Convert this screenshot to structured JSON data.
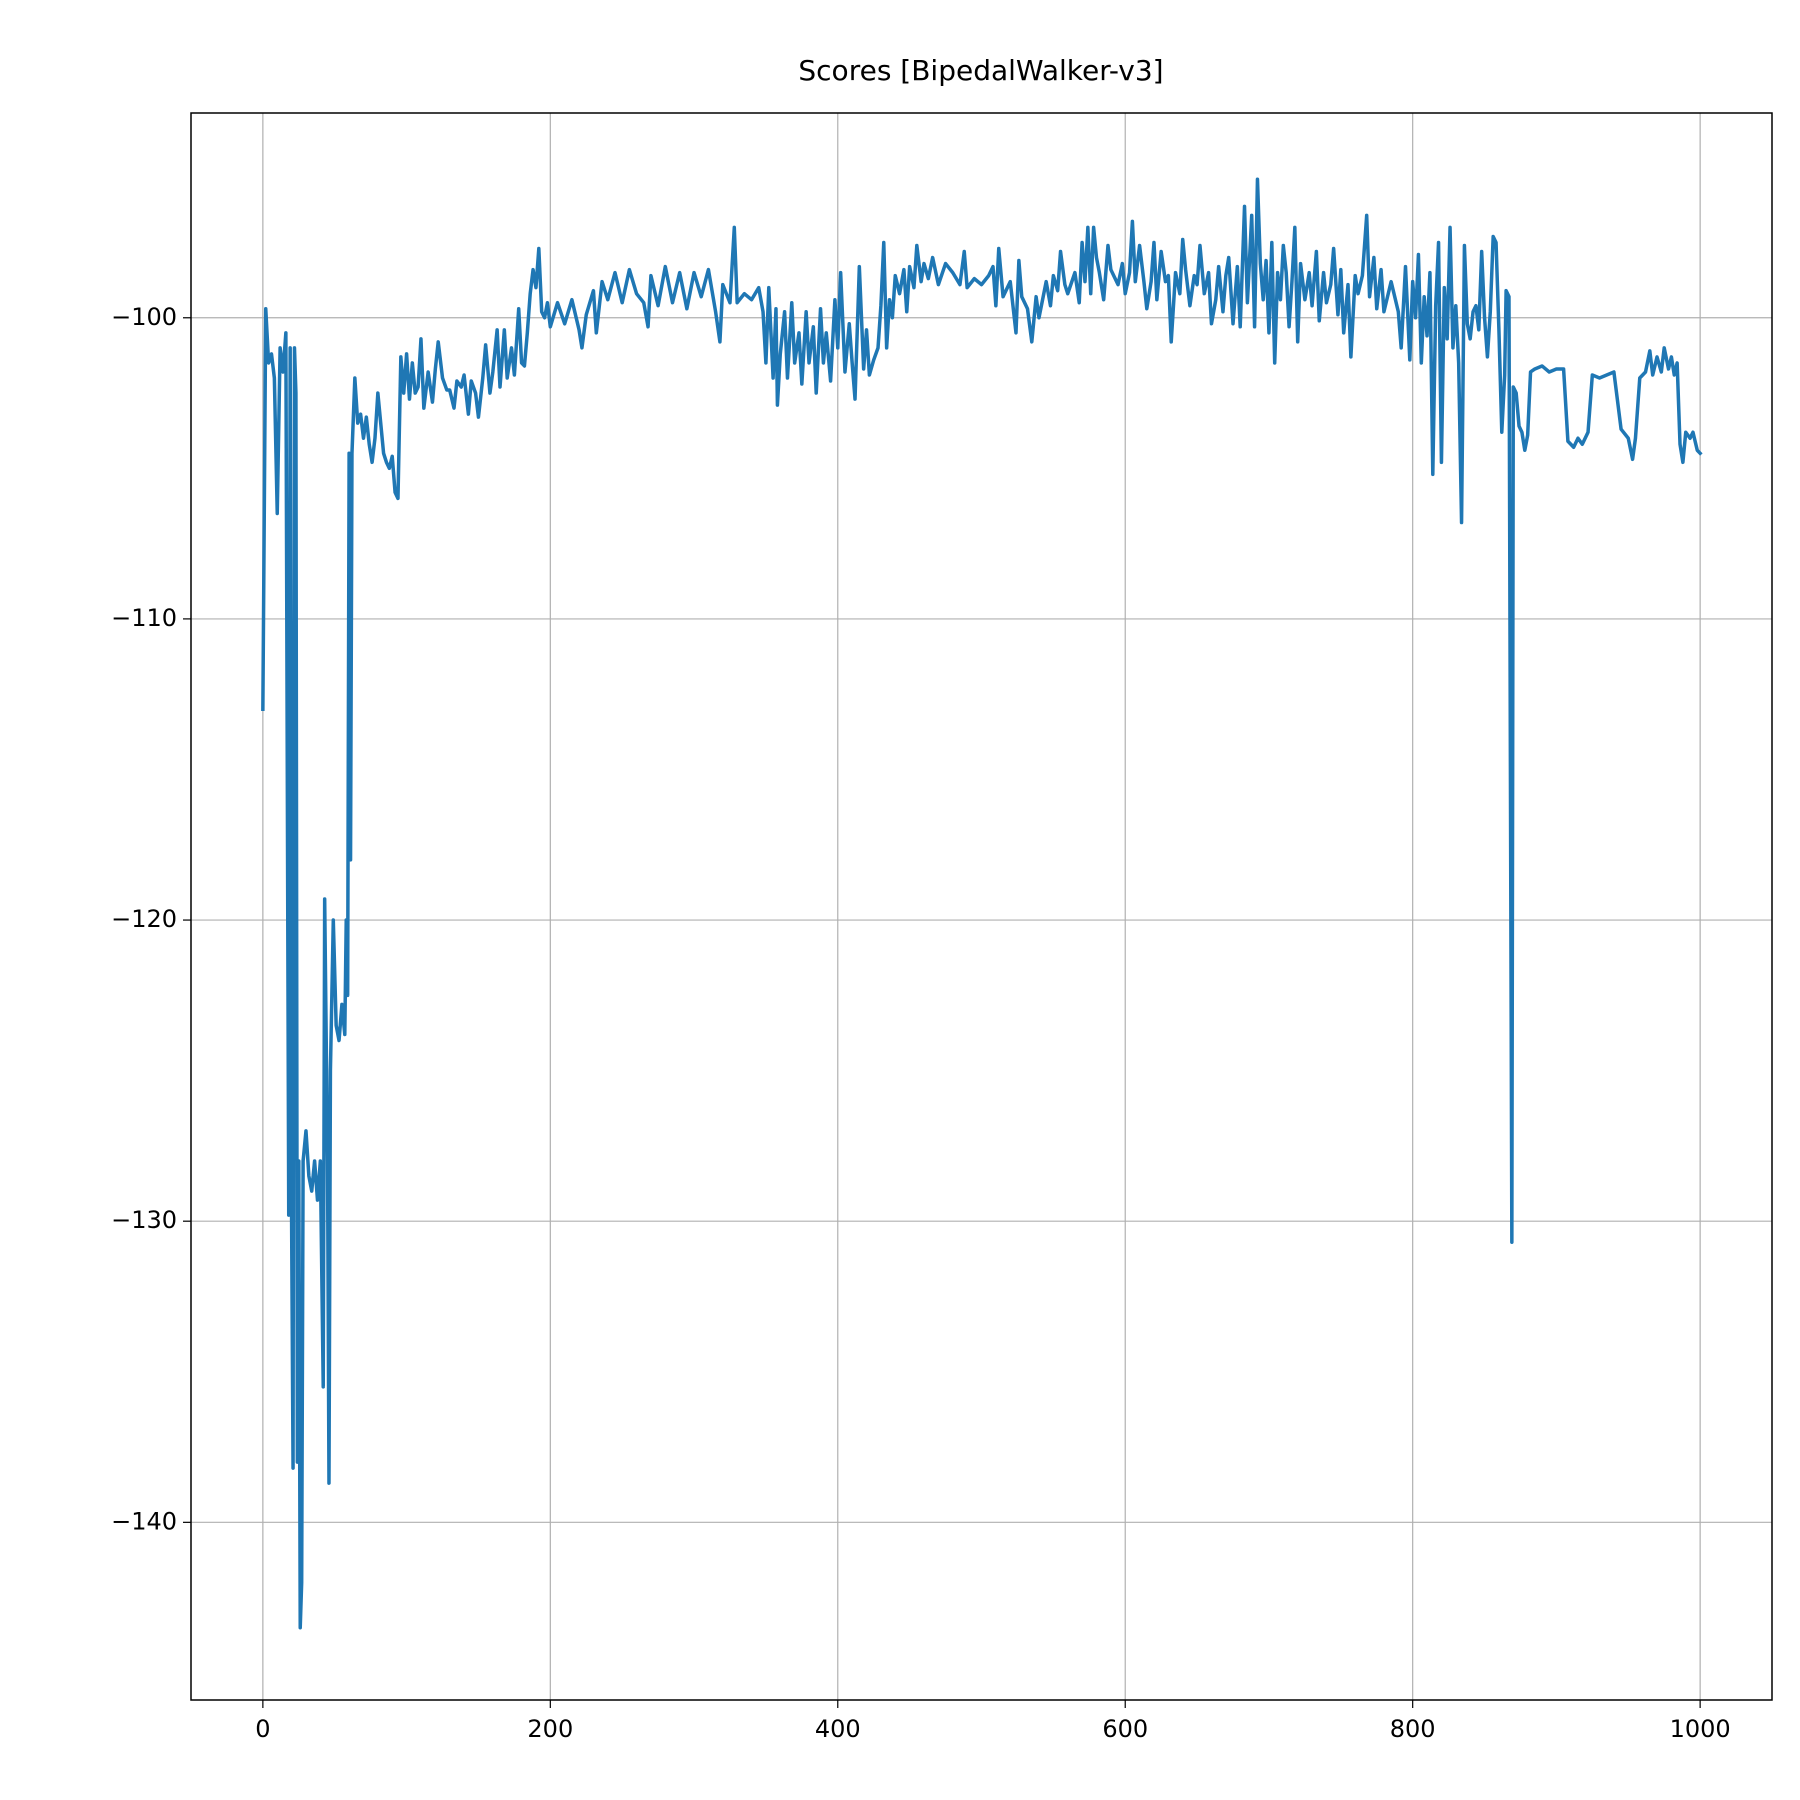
{
  "chart_data": {
    "type": "line",
    "title": "Scores [BipedalWalker-v3]",
    "color": "#1f77b4",
    "grid": true,
    "xlim": [
      -50,
      1050
    ],
    "ylim": [
      -145.9,
      -93.2
    ],
    "xticks": [
      0,
      200,
      400,
      600,
      800,
      1000
    ],
    "yticks": [
      {
        "value": -140,
        "label": "−140"
      },
      {
        "value": -130,
        "label": "−130"
      },
      {
        "value": -120,
        "label": "−120"
      },
      {
        "value": -110,
        "label": "−110"
      },
      {
        "value": -100,
        "label": "−100"
      }
    ],
    "x": [
      0,
      2,
      4,
      6,
      8,
      10,
      12,
      14,
      16,
      18,
      19,
      20,
      21,
      22,
      23,
      24,
      25,
      26,
      27,
      28,
      30,
      32,
      34,
      36,
      38,
      40,
      42,
      43,
      45,
      46,
      47,
      49,
      51,
      53,
      55,
      57,
      58,
      59,
      60,
      61,
      62,
      64,
      66,
      68,
      70,
      72,
      74,
      76,
      78,
      80,
      82,
      84,
      86,
      88,
      90,
      92,
      94,
      96,
      98,
      100,
      102,
      104,
      106,
      108,
      110,
      112,
      115,
      118,
      120,
      122,
      125,
      128,
      130,
      133,
      135,
      138,
      140,
      143,
      145,
      148,
      150,
      153,
      155,
      158,
      160,
      163,
      165,
      168,
      170,
      173,
      175,
      178,
      180,
      182,
      184,
      186,
      188,
      190,
      192,
      194,
      196,
      198,
      200,
      205,
      210,
      215,
      220,
      222,
      225,
      230,
      232,
      236,
      240,
      245,
      250,
      255,
      260,
      265,
      268,
      270,
      275,
      280,
      285,
      290,
      295,
      300,
      305,
      310,
      315,
      318,
      320,
      325,
      328,
      330,
      335,
      340,
      345,
      348,
      350,
      352,
      355,
      357,
      358,
      360,
      363,
      365,
      368,
      370,
      373,
      375,
      378,
      380,
      383,
      385,
      388,
      390,
      392,
      395,
      398,
      400,
      402,
      405,
      408,
      410,
      412,
      415,
      418,
      420,
      422,
      425,
      428,
      430,
      432,
      434,
      436,
      438,
      440,
      443,
      446,
      448,
      450,
      453,
      455,
      458,
      460,
      463,
      466,
      470,
      475,
      480,
      485,
      488,
      490,
      495,
      500,
      505,
      508,
      510,
      512,
      515,
      520,
      524,
      526,
      528,
      532,
      535,
      538,
      540,
      545,
      548,
      550,
      553,
      555,
      558,
      560,
      565,
      568,
      570,
      572,
      574,
      576,
      578,
      580,
      582,
      585,
      588,
      590,
      595,
      598,
      600,
      603,
      605,
      607,
      610,
      613,
      615,
      618,
      620,
      622,
      625,
      628,
      630,
      632,
      635,
      638,
      640,
      642,
      645,
      648,
      650,
      652,
      655,
      658,
      660,
      663,
      665,
      668,
      670,
      672,
      675,
      678,
      680,
      683,
      685,
      688,
      690,
      692,
      694,
      696,
      698,
      700,
      702,
      704,
      706,
      708,
      710,
      712,
      714,
      716,
      718,
      720,
      722,
      725,
      728,
      730,
      733,
      735,
      738,
      740,
      743,
      745,
      748,
      750,
      752,
      755,
      757,
      760,
      762,
      765,
      768,
      770,
      773,
      775,
      778,
      780,
      785,
      790,
      792,
      795,
      798,
      800,
      802,
      804,
      806,
      808,
      810,
      812,
      814,
      816,
      818,
      820,
      822,
      824,
      826,
      828,
      830,
      832,
      834,
      836,
      838,
      840,
      842,
      844,
      846,
      848,
      850,
      852,
      854,
      856,
      858,
      860,
      862,
      864,
      865,
      867,
      869,
      870,
      872,
      874,
      876,
      878,
      880,
      882,
      885,
      890,
      895,
      900,
      905,
      908,
      912,
      915,
      918,
      922,
      925,
      930,
      935,
      940,
      945,
      950,
      953,
      955,
      958,
      962,
      965,
      967,
      970,
      973,
      975,
      978,
      980,
      982,
      984,
      986,
      988,
      990,
      993,
      995,
      998,
      1000
    ],
    "values": [
      -113,
      -99.7,
      -101.5,
      -101.2,
      -102,
      -106.5,
      -101,
      -101.8,
      -100.5,
      -129.8,
      -101,
      -130,
      -138.2,
      -101,
      -102.5,
      -138,
      -128,
      -143.5,
      -142,
      -128,
      -127,
      -128.5,
      -129,
      -128,
      -129.3,
      -128,
      -135.5,
      -119.3,
      -128,
      -138.7,
      -125,
      -120,
      -123.5,
      -124,
      -122.8,
      -123.8,
      -120,
      -122.5,
      -104.5,
      -118,
      -104.5,
      -102,
      -103.5,
      -103.2,
      -104,
      -103.3,
      -104.2,
      -104.8,
      -104,
      -102.5,
      -103.5,
      -104.5,
      -104.8,
      -105,
      -104.6,
      -105.8,
      -106,
      -101.3,
      -102.5,
      -101.2,
      -102.7,
      -101.5,
      -102.5,
      -102.3,
      -100.7,
      -103,
      -101.8,
      -102.8,
      -101.7,
      -100.8,
      -102,
      -102.4,
      -102.4,
      -103,
      -102.1,
      -102.3,
      -101.9,
      -103.2,
      -102.1,
      -102.5,
      -103.3,
      -102,
      -100.9,
      -102.5,
      -101.8,
      -100.4,
      -102.3,
      -100.4,
      -102,
      -101,
      -101.9,
      -99.7,
      -101.5,
      -101.6,
      -100.5,
      -99.2,
      -98.4,
      -99,
      -97.7,
      -99.8,
      -100,
      -99.5,
      -100.3,
      -99.5,
      -100.2,
      -99.4,
      -100.4,
      -101,
      -99.9,
      -99.1,
      -100.5,
      -98.8,
      -99.4,
      -98.5,
      -99.5,
      -98.4,
      -99.2,
      -99.5,
      -100.3,
      -98.6,
      -99.6,
      -98.3,
      -99.5,
      -98.5,
      -99.7,
      -98.5,
      -99.3,
      -98.4,
      -99.8,
      -100.8,
      -98.9,
      -99.5,
      -97,
      -99.5,
      -99.2,
      -99.4,
      -99,
      -99.8,
      -101.5,
      -99,
      -102,
      -99.7,
      -102.9,
      -101.2,
      -99.8,
      -102,
      -99.5,
      -101.5,
      -100.5,
      -102.2,
      -99.8,
      -101.5,
      -100.3,
      -102.5,
      -99.7,
      -101.5,
      -100.5,
      -102.1,
      -99.4,
      -101,
      -98.5,
      -101.8,
      -100.2,
      -101.5,
      -102.7,
      -98.3,
      -101.7,
      -100.4,
      -101.9,
      -101.4,
      -101,
      -99.6,
      -97.5,
      -101,
      -99.4,
      -100,
      -98.6,
      -99.2,
      -98.4,
      -99.8,
      -98.3,
      -99,
      -97.6,
      -98.8,
      -98.2,
      -98.7,
      -98,
      -98.9,
      -98.2,
      -98.5,
      -98.9,
      -97.8,
      -99,
      -98.7,
      -98.9,
      -98.6,
      -98.3,
      -99.6,
      -97.7,
      -99.3,
      -98.8,
      -100.5,
      -98.1,
      -99.3,
      -99.7,
      -100.8,
      -99.3,
      -100,
      -98.8,
      -99.6,
      -98.6,
      -99.1,
      -97.8,
      -98.9,
      -99.2,
      -98.5,
      -99.5,
      -97.5,
      -98.8,
      -97,
      -99.2,
      -97,
      -98,
      -98.5,
      -99.4,
      -97.6,
      -98.4,
      -98.9,
      -98.2,
      -99.2,
      -98.5,
      -96.8,
      -98.8,
      -97.6,
      -98.8,
      -99.7,
      -98.8,
      -97.5,
      -99.4,
      -97.8,
      -98.8,
      -98.6,
      -100.8,
      -98.5,
      -99.2,
      -97.4,
      -98.4,
      -99.6,
      -98.6,
      -98.9,
      -97.6,
      -99.2,
      -98.5,
      -100.2,
      -99.4,
      -98.3,
      -99.8,
      -98.6,
      -98,
      -100.2,
      -98.3,
      -100.3,
      -96.3,
      -99.5,
      -96.6,
      -100.3,
      -95.4,
      -98.2,
      -99.4,
      -98.1,
      -100.5,
      -97.5,
      -101.5,
      -98.5,
      -99.4,
      -97.6,
      -98.5,
      -100.3,
      -98.8,
      -97,
      -100.8,
      -98.2,
      -99.4,
      -98.5,
      -99.6,
      -97.8,
      -100.1,
      -98.5,
      -99.5,
      -98.9,
      -97.7,
      -99.9,
      -98.4,
      -100.5,
      -98.9,
      -101.3,
      -98.6,
      -99.2,
      -98.6,
      -96.6,
      -99.3,
      -98,
      -99.7,
      -98.4,
      -99.8,
      -98.8,
      -99.8,
      -101,
      -98.3,
      -101.4,
      -98.8,
      -100,
      -97.9,
      -101.5,
      -99.3,
      -100.6,
      -98.5,
      -105.2,
      -99.6,
      -97.5,
      -104.8,
      -99,
      -100.7,
      -97,
      -101,
      -99.6,
      -101.5,
      -106.8,
      -97.6,
      -100.2,
      -100.7,
      -99.8,
      -99.6,
      -100.4,
      -97.8,
      -100,
      -101.3,
      -99.8,
      -97.3,
      -97.5,
      -100.4,
      -103.8,
      -101.9,
      -99.1,
      -99.3,
      -130.7,
      -102.3,
      -102.5,
      -103.6,
      -103.8,
      -104.4,
      -103.9,
      -101.8,
      -101.7,
      -101.6,
      -101.8,
      -101.7,
      -101.7,
      -104.1,
      -104.3,
      -104,
      -104.2,
      -103.8,
      -101.9,
      -102,
      -101.9,
      -101.8,
      -103.7,
      -104,
      -104.7,
      -104,
      -102,
      -101.8,
      -101.1,
      -101.9,
      -101.3,
      -101.8,
      -101,
      -101.7,
      -101.3,
      -101.9,
      -101.5,
      -104.2,
      -104.8,
      -103.8,
      -104,
      -103.8,
      -104.4,
      -104.5
    ]
  }
}
